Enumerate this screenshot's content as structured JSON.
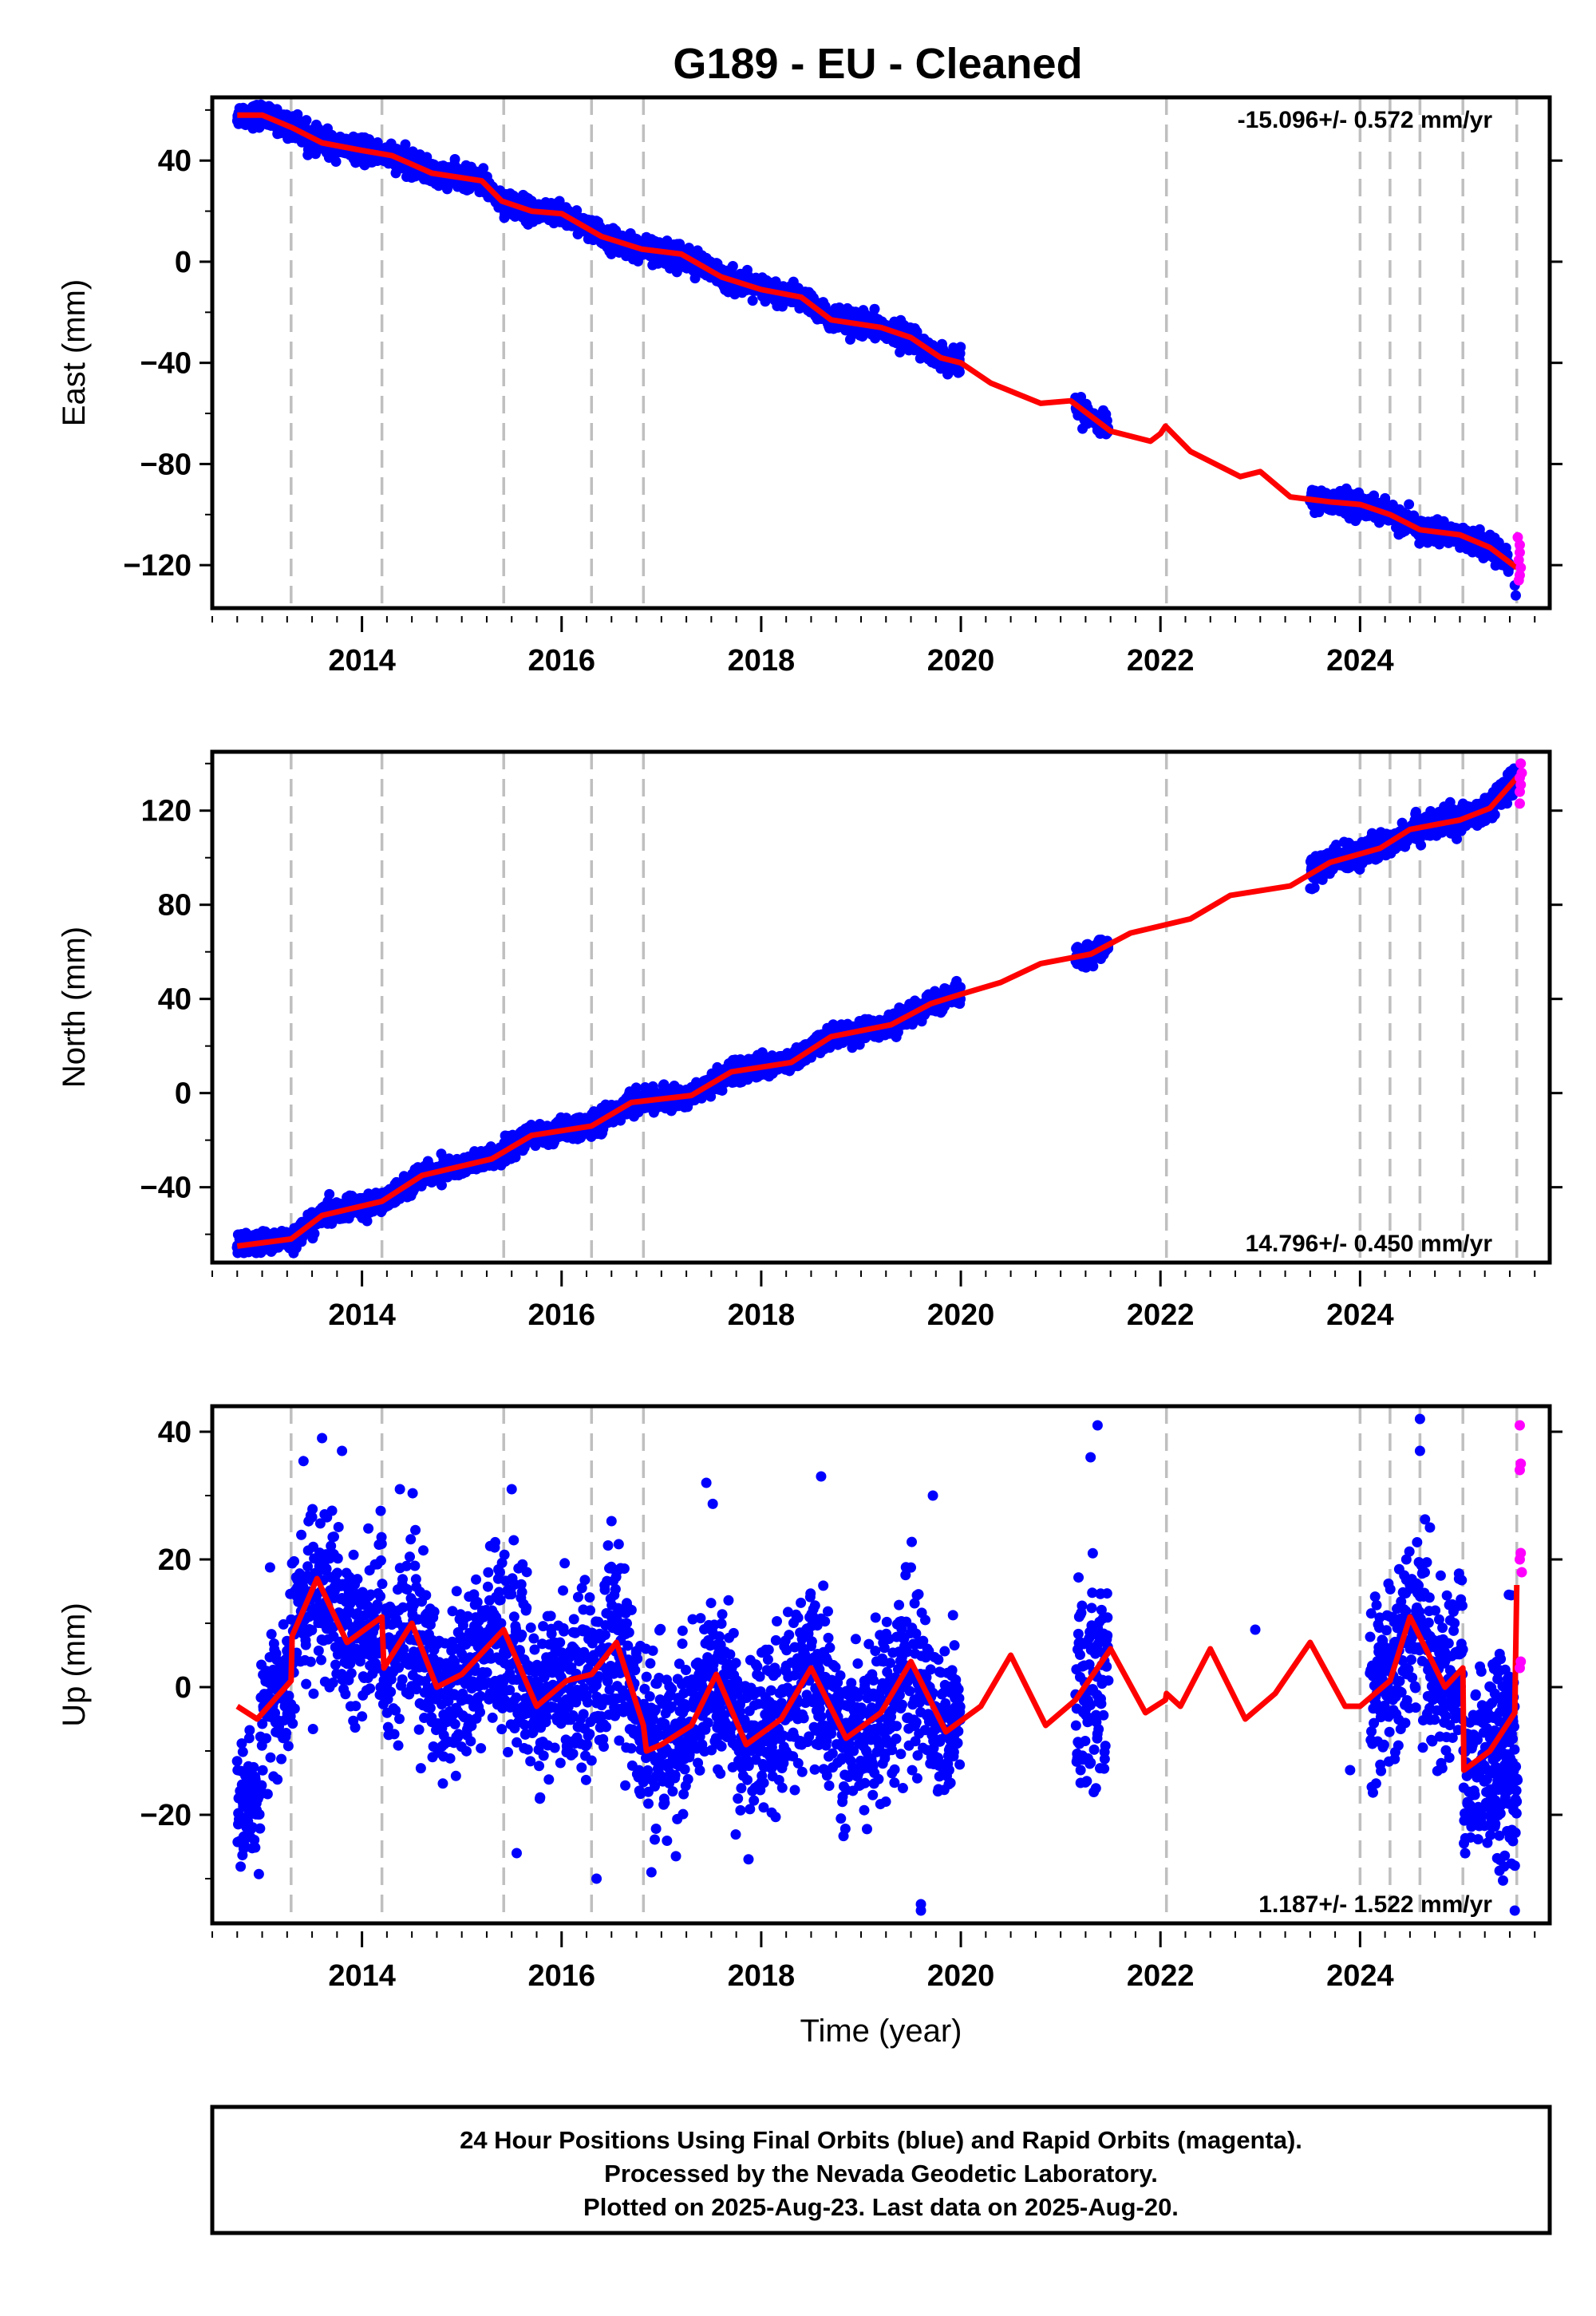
{
  "title": "G189  - EU - Cleaned",
  "colors": {
    "final_orbits": "#0000ff",
    "rapid_orbits": "#ff00ff",
    "model": "#ff0000",
    "dashed": "#bfbfbf"
  },
  "footer": {
    "line1": "24 Hour Positions Using Final Orbits (blue) and Rapid Orbits (magenta).",
    "line2": "Processed by the Nevada Geodetic Laboratory.",
    "line3": "Plotted on 2025-Aug-23. Last data on 2025-Aug-20."
  },
  "chart_data": [
    {
      "type": "scatter",
      "component": "East",
      "ylabel": "East (mm)",
      "xlabel": "",
      "xlim": [
        2012.5,
        2025.9
      ],
      "ylim": [
        -137,
        65
      ],
      "yticks": [
        -120,
        -80,
        -40,
        0,
        40
      ],
      "yticklabels": [
        "−120",
        "−80",
        "−40",
        "0",
        "40"
      ],
      "xticks": [
        2014,
        2016,
        2018,
        2020,
        2022,
        2024
      ],
      "xticklabels": [
        "2014",
        "2016",
        "2018",
        "2020",
        "2022",
        "2024"
      ],
      "rate_text": "-15.096+/- 0.572 mm/yr",
      "rate_position": "top-right",
      "rate_mm_per_yr": -15.096,
      "dashed_lines_x": [
        2013.29,
        2014.2,
        2015.42,
        2016.3,
        2016.82,
        2022.06,
        2024.0,
        2024.3,
        2024.6,
        2025.03,
        2025.57
      ],
      "segments": [
        {
          "x0": 2012.75,
          "x1": 2020.0,
          "amp": 4,
          "noise": 2.2,
          "y_at_x0": 57
        },
        {
          "x0": 2021.15,
          "x1": 2021.48,
          "amp": 4,
          "noise": 2.2,
          "y_at_x0": -62
        },
        {
          "x0": 2023.5,
          "x1": 2025.5,
          "amp": 3,
          "noise": 2.2,
          "y_at_x0": -94
        }
      ],
      "model": [
        [
          2012.75,
          58
        ],
        [
          2013.0,
          58
        ],
        [
          2013.3,
          53
        ],
        [
          2013.6,
          47
        ],
        [
          2014.0,
          44
        ],
        [
          2014.3,
          42
        ],
        [
          2014.7,
          35
        ],
        [
          2015.2,
          32
        ],
        [
          2015.4,
          24
        ],
        [
          2015.7,
          20
        ],
        [
          2016.0,
          19
        ],
        [
          2016.4,
          10
        ],
        [
          2016.8,
          5
        ],
        [
          2017.2,
          3
        ],
        [
          2017.6,
          -6
        ],
        [
          2018.0,
          -11
        ],
        [
          2018.4,
          -14
        ],
        [
          2018.7,
          -23
        ],
        [
          2019.2,
          -26
        ],
        [
          2019.5,
          -30
        ],
        [
          2019.8,
          -38
        ],
        [
          2020.0,
          -40
        ],
        [
          2020.3,
          -48
        ],
        [
          2020.8,
          -56
        ],
        [
          2021.1,
          -55
        ],
        [
          2021.5,
          -67
        ],
        [
          2021.9,
          -71
        ],
        [
          2022.0,
          -68
        ],
        [
          2022.05,
          -65
        ],
        [
          2022.3,
          -75
        ],
        [
          2022.8,
          -85
        ],
        [
          2023.0,
          -83
        ],
        [
          2023.3,
          -93
        ],
        [
          2023.7,
          -95
        ],
        [
          2024.0,
          -96
        ],
        [
          2024.3,
          -100
        ],
        [
          2024.6,
          -106
        ],
        [
          2025.0,
          -108
        ],
        [
          2025.3,
          -113
        ],
        [
          2025.57,
          -121
        ]
      ],
      "rapid": [
        [
          2025.58,
          -109
        ],
        [
          2025.6,
          -112
        ],
        [
          2025.6,
          -115
        ],
        [
          2025.59,
          -118
        ],
        [
          2025.61,
          -121
        ],
        [
          2025.6,
          -124
        ],
        [
          2025.59,
          -126
        ]
      ],
      "outliers": [
        [
          2025.56,
          -132
        ],
        [
          2025.55,
          -128
        ]
      ]
    },
    {
      "type": "scatter",
      "component": "North",
      "ylabel": "North (mm)",
      "xlabel": "",
      "xlim": [
        2012.5,
        2025.9
      ],
      "ylim": [
        -72,
        145
      ],
      "yticks": [
        -40,
        0,
        40,
        80,
        120
      ],
      "yticklabels": [
        "−40",
        "0",
        "40",
        "80",
        "120"
      ],
      "xticks": [
        2014,
        2016,
        2018,
        2020,
        2022,
        2024
      ],
      "xticklabels": [
        "2014",
        "2016",
        "2018",
        "2020",
        "2022",
        "2024"
      ],
      "rate_text": "14.796+/- 0.450 mm/yr",
      "rate_position": "bottom-right",
      "rate_mm_per_yr": 14.796,
      "dashed_lines_x": [
        2013.29,
        2014.2,
        2015.42,
        2016.3,
        2016.82,
        2022.06,
        2024.0,
        2024.3,
        2024.6,
        2025.03,
        2025.57
      ],
      "segments": [
        {
          "x0": 2012.75,
          "x1": 2020.0,
          "amp": 3,
          "noise": 2.2,
          "y_at_x0": -65
        },
        {
          "x0": 2021.15,
          "x1": 2021.48,
          "amp": 3,
          "noise": 2.2,
          "y_at_x0": 58
        },
        {
          "x0": 2023.5,
          "x1": 2025.55,
          "amp": 3,
          "noise": 2.8,
          "y_at_x0": 98
        }
      ],
      "model": [
        [
          2012.75,
          -65
        ],
        [
          2013.29,
          -62
        ],
        [
          2013.6,
          -52
        ],
        [
          2014.2,
          -46
        ],
        [
          2014.6,
          -35
        ],
        [
          2015.3,
          -28
        ],
        [
          2015.7,
          -18
        ],
        [
          2016.3,
          -14
        ],
        [
          2016.7,
          -4
        ],
        [
          2017.3,
          -1
        ],
        [
          2017.7,
          9
        ],
        [
          2018.3,
          13
        ],
        [
          2018.7,
          24
        ],
        [
          2019.3,
          29
        ],
        [
          2019.7,
          38
        ],
        [
          2020.0,
          42
        ],
        [
          2020.4,
          47
        ],
        [
          2020.8,
          55
        ],
        [
          2021.3,
          59
        ],
        [
          2021.7,
          68
        ],
        [
          2022.3,
          74
        ],
        [
          2022.7,
          84
        ],
        [
          2023.3,
          88
        ],
        [
          2023.7,
          98
        ],
        [
          2024.2,
          104
        ],
        [
          2024.5,
          112
        ],
        [
          2025.0,
          116
        ],
        [
          2025.3,
          121
        ],
        [
          2025.57,
          134
        ]
      ],
      "rapid": [
        [
          2025.6,
          128
        ],
        [
          2025.61,
          131
        ],
        [
          2025.6,
          134
        ],
        [
          2025.62,
          136
        ],
        [
          2025.61,
          140
        ],
        [
          2025.6,
          123
        ]
      ],
      "outliers": []
    },
    {
      "type": "scatter",
      "component": "Up",
      "ylabel": "Up (mm)",
      "xlabel": "Time (year)",
      "xlim": [
        2012.5,
        2025.9
      ],
      "ylim": [
        -37,
        44
      ],
      "yticks": [
        -20,
        0,
        20,
        40
      ],
      "yticklabels": [
        "−20",
        "0",
        "20",
        "40"
      ],
      "xticks": [
        2014,
        2016,
        2018,
        2020,
        2022,
        2024
      ],
      "xticklabels": [
        "2014",
        "2016",
        "2018",
        "2020",
        "2022",
        "2024"
      ],
      "rate_text": "1.187+/- 1.522 mm/yr",
      "rate_position": "bottom-right",
      "rate_mm_per_yr": 1.187,
      "dashed_lines_x": [
        2013.29,
        2014.2,
        2015.42,
        2016.3,
        2016.82,
        2022.06,
        2024.0,
        2024.3,
        2024.6,
        2025.03,
        2025.57
      ],
      "segments": [
        {
          "x0": 2012.75,
          "x1": 2012.98,
          "amp": 0,
          "noise": 4,
          "y_at_x0": -18
        },
        {
          "x0": 2012.98,
          "x1": 2020.0,
          "amp": 7,
          "noise": 6.5,
          "y_at_x0": 2
        },
        {
          "x0": 2021.15,
          "x1": 2021.48,
          "amp": 6,
          "noise": 8,
          "y_at_x0": 15
        },
        {
          "x0": 2024.1,
          "x1": 2025.55,
          "amp": 7,
          "noise": 7,
          "y_at_x0": 5
        },
        {
          "x0": 2025.3,
          "x1": 2025.58,
          "amp": 0,
          "noise": 6,
          "y_at_x0": -15
        }
      ],
      "model": [
        [
          2012.75,
          -3
        ],
        [
          2012.95,
          -5
        ],
        [
          2013.29,
          1
        ],
        [
          2013.3,
          8
        ],
        [
          2013.55,
          17
        ],
        [
          2013.85,
          7
        ],
        [
          2014.2,
          11
        ],
        [
          2014.22,
          3
        ],
        [
          2014.5,
          10
        ],
        [
          2014.75,
          0
        ],
        [
          2015.0,
          2
        ],
        [
          2015.42,
          9
        ],
        [
          2015.75,
          -3
        ],
        [
          2016.05,
          1
        ],
        [
          2016.3,
          2
        ],
        [
          2016.55,
          7
        ],
        [
          2016.82,
          -6
        ],
        [
          2016.85,
          -10
        ],
        [
          2017.0,
          -9
        ],
        [
          2017.3,
          -6
        ],
        [
          2017.55,
          2
        ],
        [
          2017.85,
          -9
        ],
        [
          2018.2,
          -5
        ],
        [
          2018.5,
          3
        ],
        [
          2018.85,
          -8
        ],
        [
          2019.2,
          -4
        ],
        [
          2019.5,
          4
        ],
        [
          2019.85,
          -7
        ],
        [
          2020.2,
          -3
        ],
        [
          2020.5,
          5
        ],
        [
          2020.85,
          -6
        ],
        [
          2021.15,
          -2
        ],
        [
          2021.5,
          6
        ],
        [
          2021.85,
          -4
        ],
        [
          2022.05,
          -2
        ],
        [
          2022.06,
          -1
        ],
        [
          2022.2,
          -3
        ],
        [
          2022.5,
          6
        ],
        [
          2022.85,
          -5
        ],
        [
          2023.15,
          -1
        ],
        [
          2023.5,
          7
        ],
        [
          2023.85,
          -3
        ],
        [
          2024.0,
          -3
        ],
        [
          2024.3,
          1
        ],
        [
          2024.5,
          11
        ],
        [
          2024.85,
          0
        ],
        [
          2025.03,
          3
        ],
        [
          2025.04,
          -13
        ],
        [
          2025.3,
          -10
        ],
        [
          2025.55,
          -4
        ],
        [
          2025.57,
          16
        ]
      ],
      "rapid": [
        [
          2025.6,
          41
        ],
        [
          2025.61,
          35
        ],
        [
          2025.6,
          34
        ],
        [
          2025.61,
          21
        ],
        [
          2025.6,
          20
        ],
        [
          2025.62,
          18
        ],
        [
          2025.61,
          4
        ],
        [
          2025.6,
          3
        ]
      ],
      "outliers": [
        [
          2019.6,
          -35
        ],
        [
          2019.6,
          -34
        ],
        [
          2025.55,
          -35
        ],
        [
          2015.55,
          -26
        ],
        [
          2016.9,
          -29
        ],
        [
          2016.35,
          -30
        ],
        [
          2024.6,
          42
        ],
        [
          2024.6,
          37
        ],
        [
          2021.37,
          41
        ],
        [
          2021.3,
          36
        ],
        [
          2013.6,
          39
        ],
        [
          2013.8,
          37
        ],
        [
          2014.38,
          31
        ],
        [
          2015.5,
          31
        ],
        [
          2016.5,
          26
        ],
        [
          2017.45,
          32
        ],
        [
          2018.6,
          33
        ],
        [
          2019.72,
          30
        ],
        [
          2021.2,
          -15
        ],
        [
          2021.2,
          -13
        ],
        [
          2022.95,
          9
        ],
        [
          2023.9,
          -13
        ],
        [
          2024.7,
          25
        ]
      ]
    }
  ]
}
